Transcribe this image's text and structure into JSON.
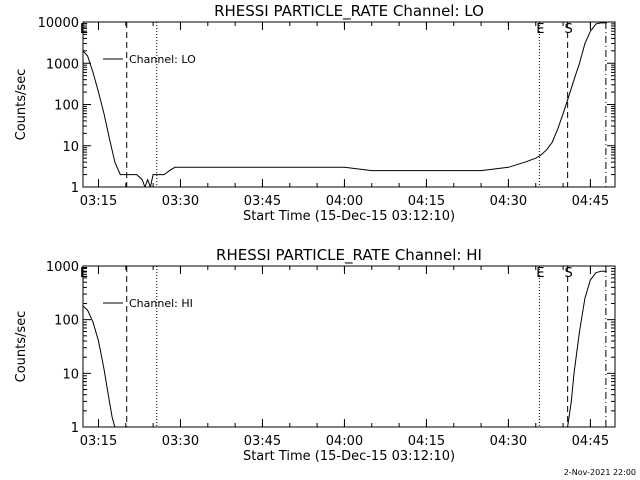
{
  "chart_data": [
    {
      "type": "line",
      "title": "RHESSI PARTICLE_RATE Channel: LO",
      "xlabel": "Start Time (15-Dec-15 03:12:10)",
      "ylabel": "Counts/sec",
      "y_scale": "log",
      "ylim": [
        1,
        10000
      ],
      "xlim": [
        "03:12:10",
        "04:49:30"
      ],
      "x_ticks": [
        "03:15",
        "03:30",
        "03:45",
        "04:00",
        "04:15",
        "04:30",
        "04:45"
      ],
      "y_ticks": [
        "1",
        "10",
        "100",
        "1000",
        "10000"
      ],
      "legend": {
        "entries": [
          "Channel: LO"
        ],
        "placement": "top-left"
      },
      "markers": [
        {
          "label": "E",
          "time": "03:12:10",
          "style": "dotted"
        },
        {
          "label": "",
          "time": "03:20:10",
          "style": "dashed"
        },
        {
          "label": "",
          "time": "03:25:40",
          "style": "dotted"
        },
        {
          "label": "E",
          "time": "04:35:40",
          "style": "dotted"
        },
        {
          "label": "S",
          "time": "04:40:50",
          "style": "dashed"
        },
        {
          "label": "",
          "time": "04:47:50",
          "style": "dashdot"
        }
      ],
      "series": [
        {
          "name": "Channel: LO",
          "x": [
            "03:12:10",
            "03:13:00",
            "03:14:00",
            "03:15:00",
            "03:16:00",
            "03:17:00",
            "03:18:00",
            "03:19:00",
            "03:20:00",
            "03:21:00",
            "03:22:00",
            "03:23:00",
            "03:23:30",
            "03:24:00",
            "03:24:30",
            "03:25:00",
            "03:26:00",
            "03:27:00",
            "03:28:00",
            "03:29:00",
            "03:30:00",
            "03:35:00",
            "03:40:00",
            "03:45:00",
            "03:50:00",
            "03:55:00",
            "04:00:00",
            "04:05:00",
            "04:10:00",
            "04:15:00",
            "04:20:00",
            "04:25:00",
            "04:30:00",
            "04:33:00",
            "04:35:00",
            "04:36:00",
            "04:37:00",
            "04:38:00",
            "04:39:00",
            "04:40:00",
            "04:41:00",
            "04:42:00",
            "04:43:00",
            "04:44:00",
            "04:45:00",
            "04:46:00",
            "04:47:00",
            "04:48:00"
          ],
          "values": [
            2000,
            1500,
            600,
            200,
            60,
            15,
            4,
            2,
            2,
            2,
            2,
            1.5,
            1,
            1.5,
            1,
            2,
            2,
            2,
            2.5,
            3,
            3,
            3,
            3,
            3,
            3,
            3,
            3,
            2.5,
            2.5,
            2.5,
            2.5,
            2.5,
            3,
            4,
            5,
            6,
            8,
            12,
            25,
            60,
            150,
            400,
            1000,
            3000,
            6000,
            9000,
            9500,
            9500
          ]
        }
      ]
    },
    {
      "type": "line",
      "title": "RHESSI PARTICLE_RATE Channel: HI",
      "xlabel": "Start Time (15-Dec-15 03:12:10)",
      "ylabel": "Counts/sec",
      "y_scale": "log",
      "ylim": [
        1,
        1000
      ],
      "xlim": [
        "03:12:10",
        "04:49:30"
      ],
      "x_ticks": [
        "03:15",
        "03:30",
        "03:45",
        "04:00",
        "04:15",
        "04:30",
        "04:45"
      ],
      "y_ticks": [
        "1",
        "10",
        "100",
        "1000"
      ],
      "legend": {
        "entries": [
          "Channel: HI"
        ],
        "placement": "top-left"
      },
      "markers": [
        {
          "label": "E",
          "time": "03:12:10",
          "style": "dotted"
        },
        {
          "label": "",
          "time": "03:20:10",
          "style": "dashed"
        },
        {
          "label": "",
          "time": "03:25:40",
          "style": "dotted"
        },
        {
          "label": "E",
          "time": "04:35:40",
          "style": "dotted"
        },
        {
          "label": "S",
          "time": "04:40:50",
          "style": "dashed"
        },
        {
          "label": "",
          "time": "04:47:50",
          "style": "dashdot"
        }
      ],
      "series": [
        {
          "name": "Channel: HI",
          "x": [
            "03:12:10",
            "03:13:00",
            "03:14:00",
            "03:15:00",
            "03:16:00",
            "03:17:00",
            "03:17:30",
            "03:18:00",
            "04:40:50",
            "04:41:30",
            "04:42:00",
            "04:43:00",
            "04:44:00",
            "04:45:00",
            "04:46:00",
            "04:47:00",
            "04:48:00"
          ],
          "values": [
            180,
            150,
            90,
            40,
            12,
            3,
            1.5,
            1,
            1,
            3,
            10,
            60,
            250,
            550,
            750,
            800,
            800
          ]
        }
      ]
    }
  ],
  "footer": {
    "timestamp": "2-Nov-2021 22:00"
  }
}
